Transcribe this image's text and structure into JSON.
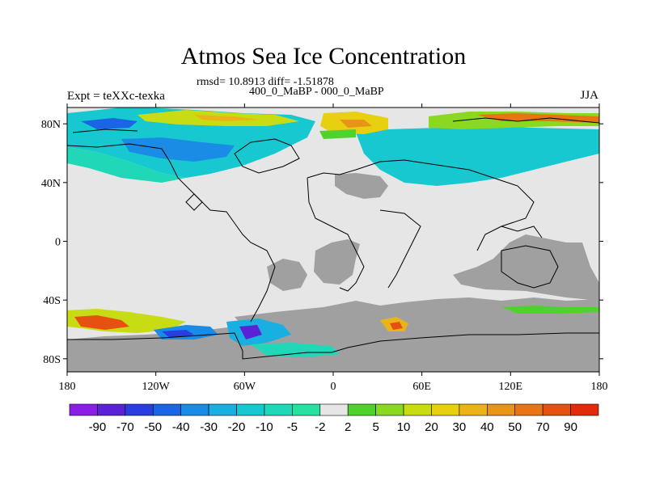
{
  "figure": {
    "title": "Atmos Sea Ice Concentration",
    "stats_line": "rmsd= 10.8913 diff= -1.51878",
    "comparison": "400_0_MaBP - 000_0_MaBP",
    "experiment": "Expt = teXXc-texka",
    "season": "JJA"
  },
  "map": {
    "longitude_labels": [
      "180",
      "120W",
      "60W",
      "0",
      "60E",
      "120E",
      "180"
    ],
    "latitude_labels": [
      "80N",
      "40N",
      "0",
      "40S",
      "80S"
    ],
    "land_color": "#a0a0a0",
    "no_change_color": "#e6e6e6"
  },
  "colorbar": {
    "labels": [
      "-90",
      "-70",
      "-50",
      "-40",
      "-30",
      "-20",
      "-10",
      "-5",
      "-2",
      "2",
      "5",
      "10",
      "20",
      "30",
      "40",
      "50",
      "70",
      "90"
    ],
    "colors": [
      "#8a1de6",
      "#5a22d6",
      "#2a3ee0",
      "#1a64e6",
      "#1a8ce6",
      "#18b0e0",
      "#18c8d0",
      "#20d8b8",
      "#28e0a0",
      "#e6e6e6",
      "#50d22c",
      "#8ad820",
      "#c8dc14",
      "#e8d010",
      "#eab418",
      "#e89418",
      "#e87414",
      "#e65010",
      "#e02c0c"
    ]
  }
}
